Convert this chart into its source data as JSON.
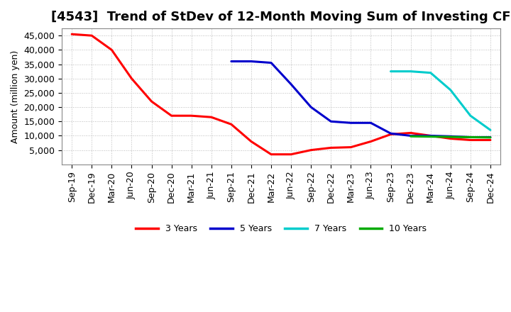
{
  "title": "[4543]  Trend of StDev of 12-Month Moving Sum of Investing CF",
  "ylabel": "Amount (million yen)",
  "background_color": "#ffffff",
  "grid_color": "#aaaaaa",
  "title_fontsize": 13,
  "axis_fontsize": 9,
  "tick_labels": [
    "Sep-19",
    "Dec-19",
    "Mar-20",
    "Jun-20",
    "Sep-20",
    "Dec-20",
    "Mar-21",
    "Jun-21",
    "Sep-21",
    "Dec-21",
    "Mar-22",
    "Jun-22",
    "Sep-22",
    "Dec-22",
    "Mar-23",
    "Jun-23",
    "Sep-23",
    "Dec-23",
    "Mar-24",
    "Jun-24",
    "Sep-24",
    "Dec-24"
  ],
  "series": {
    "3Y": {
      "color": "#ff0000",
      "label": "3 Years",
      "x_indices": [
        0,
        1,
        2,
        3,
        4,
        5,
        6,
        7,
        8,
        9,
        10,
        11,
        12,
        13,
        14,
        15,
        16,
        17,
        18,
        19,
        20,
        21
      ],
      "values": [
        45500,
        45000,
        40000,
        30000,
        22000,
        17000,
        17000,
        16500,
        14000,
        8000,
        3500,
        3500,
        5000,
        5800,
        6000,
        8000,
        10500,
        11000,
        10000,
        9000,
        8500,
        8500
      ]
    },
    "5Y": {
      "color": "#0000cc",
      "label": "5 Years",
      "x_indices": [
        8,
        9,
        10,
        11,
        12,
        13,
        14,
        15,
        16,
        17,
        18,
        19,
        20,
        21
      ],
      "values": [
        36000,
        36000,
        35500,
        28000,
        20000,
        15000,
        14500,
        14500,
        10800,
        10000,
        10000,
        9800,
        9500,
        9500
      ]
    },
    "7Y": {
      "color": "#00cccc",
      "label": "7 Years",
      "x_indices": [
        16,
        17,
        18,
        19,
        20,
        21
      ],
      "values": [
        32500,
        32500,
        32000,
        26000,
        17000,
        12000
      ]
    },
    "10Y": {
      "color": "#00aa00",
      "label": "10 Years",
      "x_indices": [
        17,
        18,
        19,
        20,
        21
      ],
      "values": [
        9800,
        9700,
        9600,
        9500,
        9400
      ]
    }
  },
  "ylim": [
    0,
    47500
  ],
  "yticks": [
    5000,
    10000,
    15000,
    20000,
    25000,
    30000,
    35000,
    40000,
    45000
  ],
  "line_width": 2.2
}
